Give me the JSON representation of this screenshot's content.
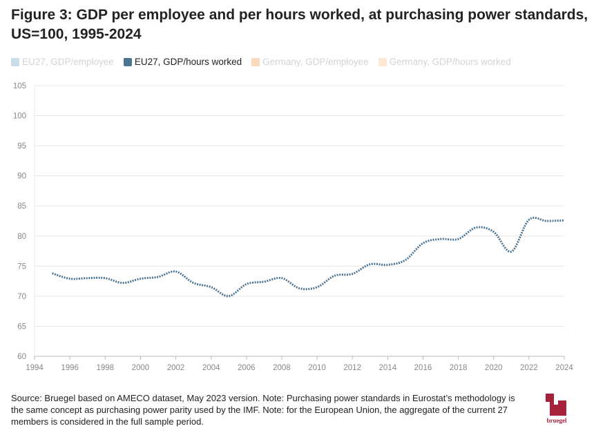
{
  "title": "Figure 3: GDP per employee and per hours worked, at purchasing power standards, US=100, 1995-2024",
  "legend": [
    {
      "label": "EU27, GDP/employee",
      "color": "#c8dbe6",
      "active": false
    },
    {
      "label": "EU27, GDP/hours worked",
      "color": "#4d7490",
      "active": true
    },
    {
      "label": "Germany, GDP/employee",
      "color": "#fbd9bd",
      "active": false
    },
    {
      "label": "Germany, GDP/hours worked",
      "color": "#fde8d6",
      "active": false
    }
  ],
  "footer": "Source: Bruegel based on AMECO dataset, May 2023 version. Note: Purchasing power standards in Eurostat’s methodology is the same concept as purchasing power parity used by the IMF. Note: for the European Union, the aggregate of the current 27 members is considered in the full sample period.",
  "logo": {
    "text": "bruegel",
    "color": "#a6223b"
  },
  "chart_data": {
    "type": "line",
    "xlim": [
      1994,
      2024
    ],
    "ylim": [
      60,
      105
    ],
    "x_ticks": [
      1994,
      1996,
      1998,
      2000,
      2002,
      2004,
      2006,
      2008,
      2010,
      2012,
      2014,
      2016,
      2018,
      2020,
      2022,
      2024
    ],
    "y_ticks": [
      60,
      65,
      70,
      75,
      80,
      85,
      90,
      95,
      100,
      105
    ],
    "grid": true,
    "series": [
      {
        "name": "EU27, GDP/hours worked",
        "color": "#4d7490",
        "style": "dotted",
        "x": [
          1995,
          1996,
          1997,
          1998,
          1999,
          2000,
          2001,
          2002,
          2003,
          2004,
          2005,
          2006,
          2007,
          2008,
          2009,
          2010,
          2011,
          2012,
          2013,
          2014,
          2015,
          2016,
          2017,
          2018,
          2019,
          2020,
          2021,
          2022,
          2023,
          2024
        ],
        "y": [
          73.8,
          72.9,
          73.0,
          73.0,
          72.2,
          72.9,
          73.2,
          74.1,
          72.2,
          71.5,
          70.0,
          72.0,
          72.4,
          73.0,
          71.3,
          71.5,
          73.4,
          73.7,
          75.3,
          75.2,
          76.0,
          78.8,
          79.5,
          79.5,
          81.4,
          80.7,
          77.4,
          82.7,
          82.5,
          82.6
        ]
      }
    ]
  }
}
